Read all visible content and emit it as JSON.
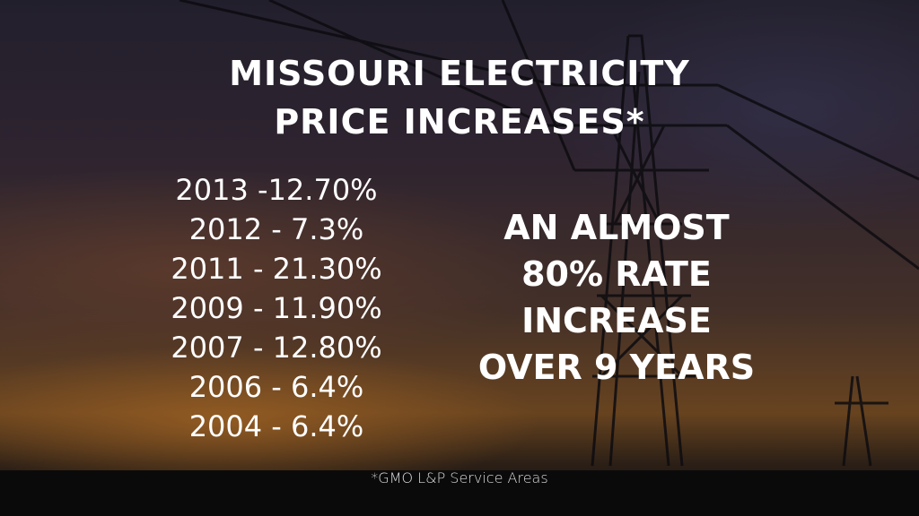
{
  "title": {
    "line1": "MISSOURI ELECTRICITY",
    "line2": "PRICE INCREASES*"
  },
  "increases": [
    {
      "text": "2013 -12.70%"
    },
    {
      "text": "2012 - 7.3%"
    },
    {
      "text": "2011 - 21.30%"
    },
    {
      "text": "2009 - 11.90%"
    },
    {
      "text": "2007 - 12.80%"
    },
    {
      "text": "2006 - 6.4%"
    },
    {
      "text": "2004 - 6.4%"
    }
  ],
  "callout": {
    "line1": "AN ALMOST",
    "line2": "80% RATE",
    "line3": "INCREASE",
    "line4": "OVER 9 YEARS"
  },
  "footnote": "*GMO L&P Service Areas"
}
